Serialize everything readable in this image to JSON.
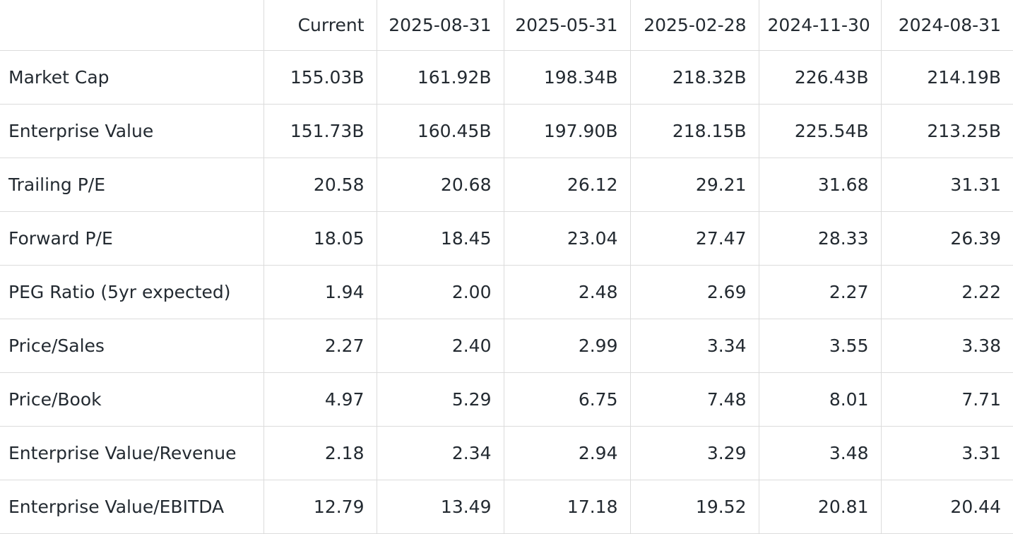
{
  "table": {
    "columns": [
      "Current",
      "2025-08-31",
      "2025-05-31",
      "2025-02-28",
      "2024-11-30",
      "2024-08-31"
    ],
    "rows": [
      [
        "Market Cap",
        "155.03B",
        "161.92B",
        "198.34B",
        "218.32B",
        "226.43B",
        "214.19B"
      ],
      [
        "Enterprise Value",
        "151.73B",
        "160.45B",
        "197.90B",
        "218.15B",
        "225.54B",
        "213.25B"
      ],
      [
        "Trailing P/E",
        "20.58",
        "20.68",
        "26.12",
        "29.21",
        "31.68",
        "31.31"
      ],
      [
        "Forward P/E",
        "18.05",
        "18.45",
        "23.04",
        "27.47",
        "28.33",
        "26.39"
      ],
      [
        "PEG Ratio (5yr expected)",
        "1.94",
        "2.00",
        "2.48",
        "2.69",
        "2.27",
        "2.22"
      ],
      [
        "Price/Sales",
        "2.27",
        "2.40",
        "2.99",
        "3.34",
        "3.55",
        "3.38"
      ],
      [
        "Price/Book",
        "4.97",
        "5.29",
        "6.75",
        "7.48",
        "8.01",
        "7.71"
      ],
      [
        "Enterprise Value/Revenue",
        "2.18",
        "2.34",
        "2.94",
        "3.29",
        "3.48",
        "3.31"
      ],
      [
        "Enterprise Value/EBITDA",
        "12.79",
        "13.49",
        "17.18",
        "19.52",
        "20.81",
        "20.44"
      ]
    ]
  }
}
